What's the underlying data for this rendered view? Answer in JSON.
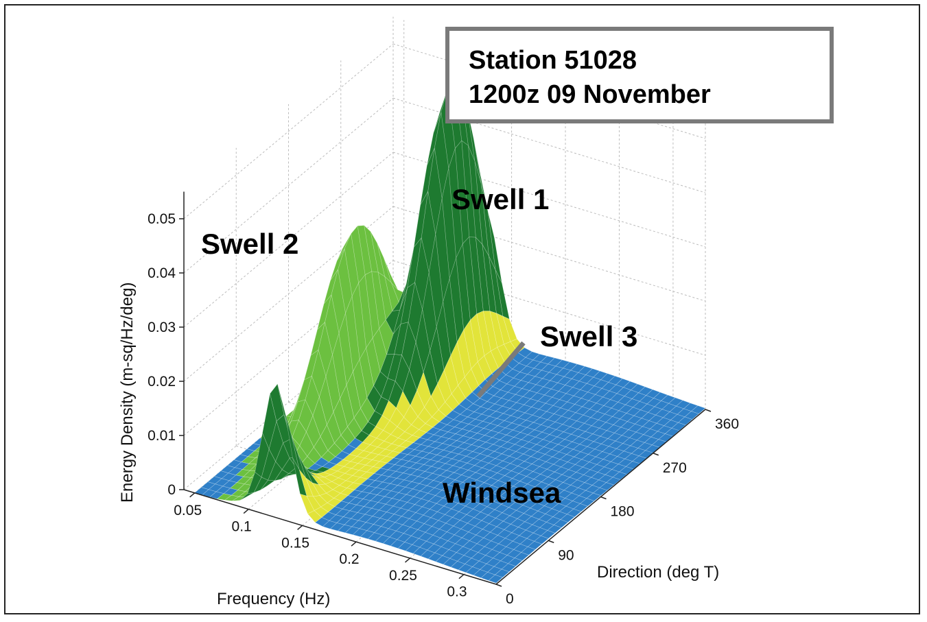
{
  "chart_data": {
    "type": "surface",
    "title_lines": [
      "Station 51028",
      "1200z 09 November"
    ],
    "xlabel": "Frequency (Hz)",
    "ylabel": "Direction (deg T)",
    "zlabel": "Energy Density (m-sq/Hz/deg)",
    "x_ticks": [
      "0.05",
      "0.1",
      "0.15",
      "0.2",
      "0.25",
      "0.3"
    ],
    "y_ticks": [
      "0",
      "90",
      "180",
      "270",
      "360"
    ],
    "z_ticks": [
      "0",
      "0.01",
      "0.02",
      "0.03",
      "0.04",
      "0.05"
    ],
    "xlim": [
      0.04,
      0.33
    ],
    "ylim": [
      0,
      360
    ],
    "zlim": [
      0,
      0.055
    ],
    "grid": true,
    "annotations": [
      "Swell 1",
      "Swell 2",
      "Swell 3",
      "Windsea"
    ],
    "peaks": [
      {
        "name": "Swell 1",
        "frequency": 0.125,
        "direction": 300,
        "energy": 0.052
      },
      {
        "name": "Swell 2",
        "frequency": 0.09,
        "direction": 200,
        "energy": 0.034
      },
      {
        "name": "Swell 3",
        "frequency": 0.14,
        "direction": 300,
        "energy": 0.004
      },
      {
        "name": "Windsea",
        "frequency": 0.22,
        "direction": 90,
        "energy": 0.002
      }
    ],
    "component_colors": {
      "Swell 1": "#1e7a30",
      "Swell 2": "#6cc040",
      "Swell 3": "#e2e43a",
      "Windsea": "#2f80c8"
    }
  }
}
